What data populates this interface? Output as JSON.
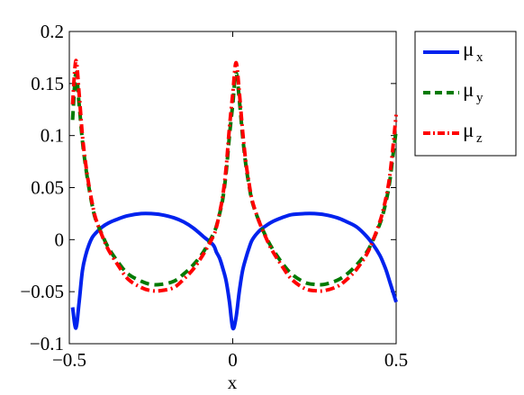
{
  "chart_data": {
    "type": "line",
    "title": "",
    "xlabel": "x",
    "ylabel": "",
    "xlim": [
      -0.5,
      0.5
    ],
    "ylim": [
      -0.1,
      0.2
    ],
    "xticks": [
      -0.5,
      0,
      0.5
    ],
    "xtick_labels": [
      "−0.5",
      "0",
      "0.5"
    ],
    "yticks": [
      -0.1,
      -0.05,
      0,
      0.05,
      0.1,
      0.15,
      0.2
    ],
    "ytick_labels": [
      "−0.1",
      "−0.05",
      "0",
      "0.05",
      "0.1",
      "0.15",
      "0.2"
    ],
    "grid": false,
    "legend_position": "outside-right-top",
    "x": [
      -0.49,
      -0.48,
      -0.47,
      -0.46,
      -0.45,
      -0.44,
      -0.43,
      -0.42,
      -0.4,
      -0.38,
      -0.35,
      -0.32,
      -0.28,
      -0.25,
      -0.22,
      -0.18,
      -0.15,
      -0.12,
      -0.09,
      -0.06,
      -0.05,
      -0.04,
      -0.03,
      -0.02,
      -0.01,
      0.0,
      0.01,
      0.02,
      0.03,
      0.04,
      0.05,
      0.06,
      0.08,
      0.1,
      0.12,
      0.15,
      0.18,
      0.22,
      0.25,
      0.28,
      0.32,
      0.35,
      0.38,
      0.41,
      0.43,
      0.45,
      0.46,
      0.47,
      0.48,
      0.49,
      0.5
    ],
    "series": [
      {
        "name": "μ",
        "subscript": "x",
        "color": "#0022ee",
        "dash": "solid",
        "values": [
          -0.065,
          -0.085,
          -0.06,
          -0.03,
          -0.015,
          -0.005,
          0.002,
          0.006,
          0.012,
          0.016,
          0.02,
          0.023,
          0.025,
          0.025,
          0.024,
          0.021,
          0.017,
          0.011,
          0.003,
          -0.005,
          -0.012,
          -0.018,
          -0.028,
          -0.04,
          -0.06,
          -0.085,
          -0.075,
          -0.05,
          -0.03,
          -0.018,
          -0.008,
          0.0,
          0.008,
          0.013,
          0.017,
          0.021,
          0.024,
          0.025,
          0.025,
          0.024,
          0.021,
          0.017,
          0.012,
          0.003,
          -0.005,
          -0.015,
          -0.022,
          -0.03,
          -0.04,
          -0.05,
          -0.06
        ]
      },
      {
        "name": "μ",
        "subscript": "y",
        "color": "#007a00",
        "dash": "dashed",
        "values": [
          0.115,
          0.16,
          0.13,
          0.095,
          0.07,
          0.05,
          0.033,
          0.02,
          0.005,
          -0.008,
          -0.022,
          -0.033,
          -0.04,
          -0.043,
          -0.043,
          -0.04,
          -0.033,
          -0.024,
          -0.012,
          0.005,
          0.013,
          0.025,
          0.04,
          0.065,
          0.1,
          0.13,
          0.16,
          0.135,
          0.1,
          0.072,
          0.052,
          0.036,
          0.018,
          0.004,
          -0.008,
          -0.022,
          -0.033,
          -0.041,
          -0.043,
          -0.043,
          -0.039,
          -0.033,
          -0.024,
          -0.012,
          0.0,
          0.015,
          0.025,
          0.038,
          0.055,
          0.08,
          0.105
        ]
      },
      {
        "name": "μ",
        "subscript": "z",
        "color": "#ff0000",
        "dash": "dashdot",
        "values": [
          0.13,
          0.172,
          0.14,
          0.1,
          0.073,
          0.052,
          0.035,
          0.021,
          0.004,
          -0.01,
          -0.025,
          -0.038,
          -0.046,
          -0.049,
          -0.049,
          -0.046,
          -0.038,
          -0.028,
          -0.014,
          0.003,
          0.012,
          0.026,
          0.043,
          0.07,
          0.108,
          0.14,
          0.17,
          0.142,
          0.105,
          0.075,
          0.054,
          0.037,
          0.018,
          0.003,
          -0.01,
          -0.025,
          -0.038,
          -0.047,
          -0.049,
          -0.049,
          -0.045,
          -0.038,
          -0.028,
          -0.014,
          0.0,
          0.017,
          0.028,
          0.042,
          0.06,
          0.088,
          0.12
        ]
      }
    ]
  }
}
